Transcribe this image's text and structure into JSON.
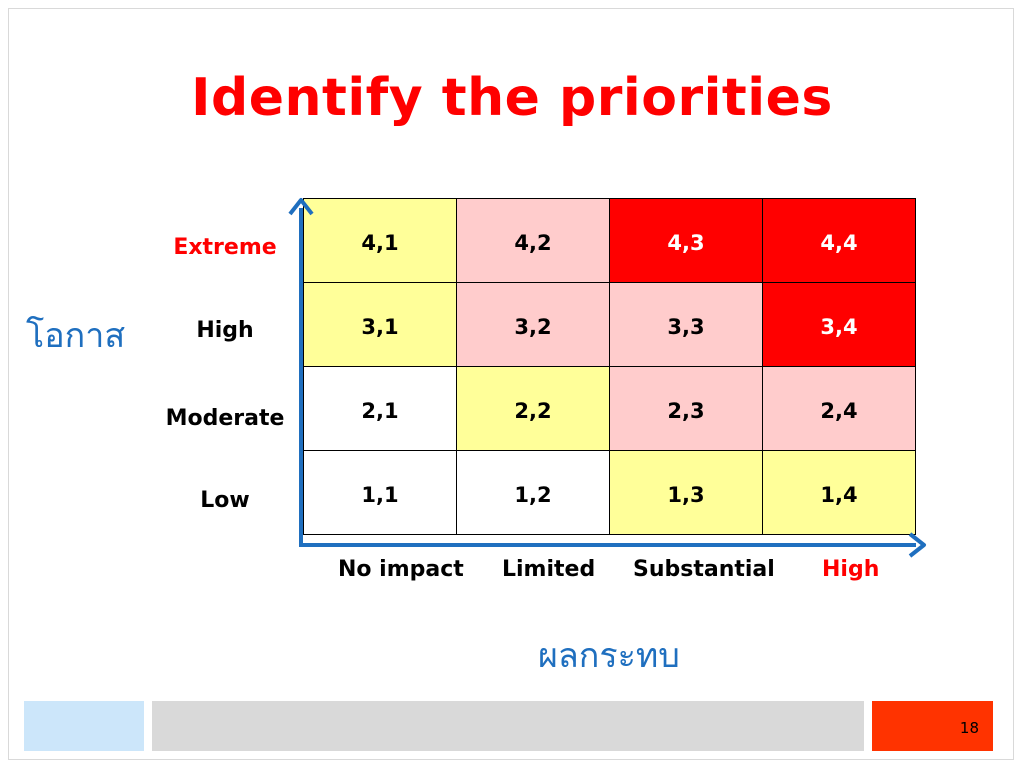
{
  "title": "Identify the priorities",
  "y_axis_title": "โอกาส",
  "x_axis_title": "ผลกระทบ",
  "row_labels": [
    "Extreme",
    "High",
    "Moderate",
    "Low"
  ],
  "col_labels": [
    "No impact",
    "Limited",
    "Substantial",
    "High"
  ],
  "matrix": [
    [
      "4,1",
      "4,2",
      "4,3",
      "4,4"
    ],
    [
      "3,1",
      "3,2",
      "3,3",
      "3,4"
    ],
    [
      "2,1",
      "2,2",
      "2,3",
      "2,4"
    ],
    [
      "1,1",
      "1,2",
      "1,3",
      "1,4"
    ]
  ],
  "cell_colors": {
    "white": "#ffffff",
    "yellow": "#ffff99",
    "pink": "#ffcccc",
    "red": "#ff0000"
  },
  "accent_colors": {
    "title": "#ff0000",
    "axis": "#1f6fbf",
    "footer_blue": "#cce6fa",
    "footer_gray": "#d9d9d9",
    "footer_orange": "#ff3300"
  },
  "page_number": "18"
}
